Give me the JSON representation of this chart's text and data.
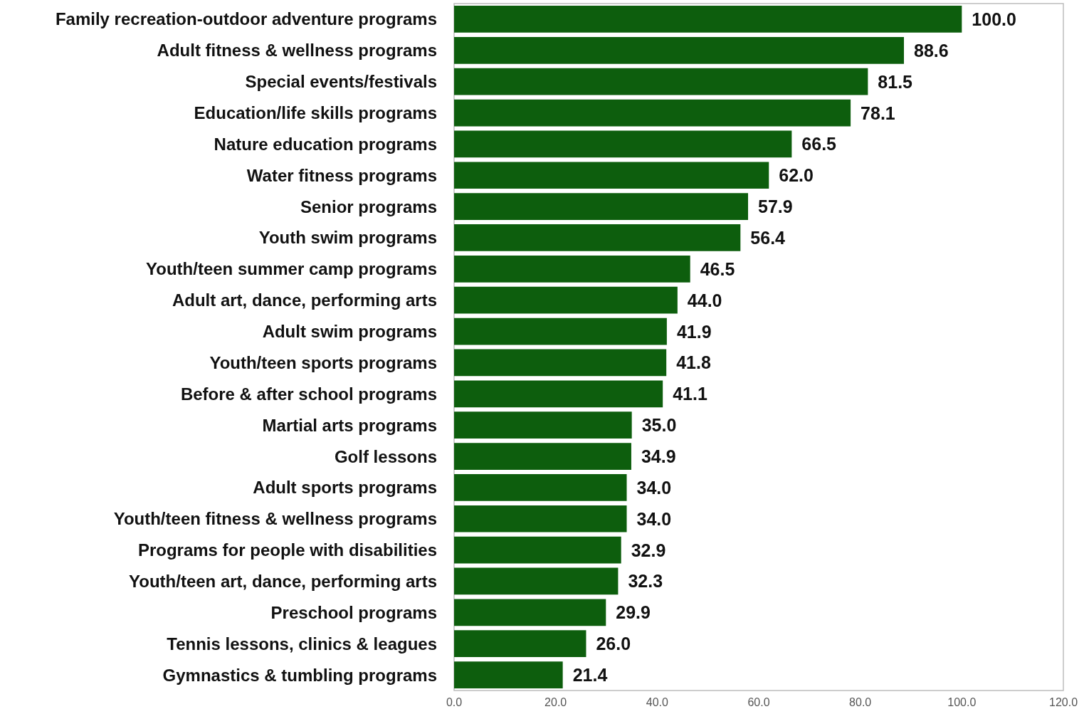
{
  "chart_data": {
    "type": "bar",
    "orientation": "horizontal",
    "categories": [
      "Family recreation-outdoor adventure programs",
      "Adult fitness & wellness programs",
      "Special events/festivals",
      "Education/life skills programs",
      "Nature education programs",
      "Water fitness programs",
      "Senior programs",
      "Youth swim programs",
      "Youth/teen summer camp programs",
      "Adult art, dance, performing arts",
      "Adult swim programs",
      "Youth/teen sports programs",
      "Before & after school programs",
      "Martial arts programs",
      "Golf lessons",
      "Adult sports programs",
      "Youth/teen fitness & wellness programs",
      "Programs for people with disabilities",
      "Youth/teen art, dance, performing arts",
      "Preschool programs",
      "Tennis lessons, clinics & leagues",
      "Gymnastics & tumbling programs"
    ],
    "values": [
      100.0,
      88.6,
      81.5,
      78.1,
      66.5,
      62.0,
      57.9,
      56.4,
      46.5,
      44.0,
      41.9,
      41.8,
      41.1,
      35.0,
      34.9,
      34.0,
      34.0,
      32.9,
      32.3,
      29.9,
      26.0,
      21.4
    ],
    "value_labels": [
      "100.0",
      "88.6",
      "81.5",
      "78.1",
      "66.5",
      "62.0",
      "57.9",
      "56.4",
      "46.5",
      "44.0",
      "41.9",
      "41.8",
      "41.1",
      "35.0",
      "34.9",
      "34.0",
      "34.0",
      "32.9",
      "32.3",
      "29.9",
      "26.0",
      "21.4"
    ],
    "color": "#0d5e0d",
    "xlim": [
      0,
      120
    ],
    "xticks": [
      {
        "value": 0,
        "label": "0.0"
      },
      {
        "value": 20,
        "label": "20.0"
      },
      {
        "value": 40,
        "label": "40.0"
      },
      {
        "value": 60,
        "label": "60.0"
      },
      {
        "value": 80,
        "label": "80.0"
      },
      {
        "value": 100,
        "label": "100.0"
      },
      {
        "value": 120,
        "label": "120.0"
      }
    ],
    "grid": false
  }
}
